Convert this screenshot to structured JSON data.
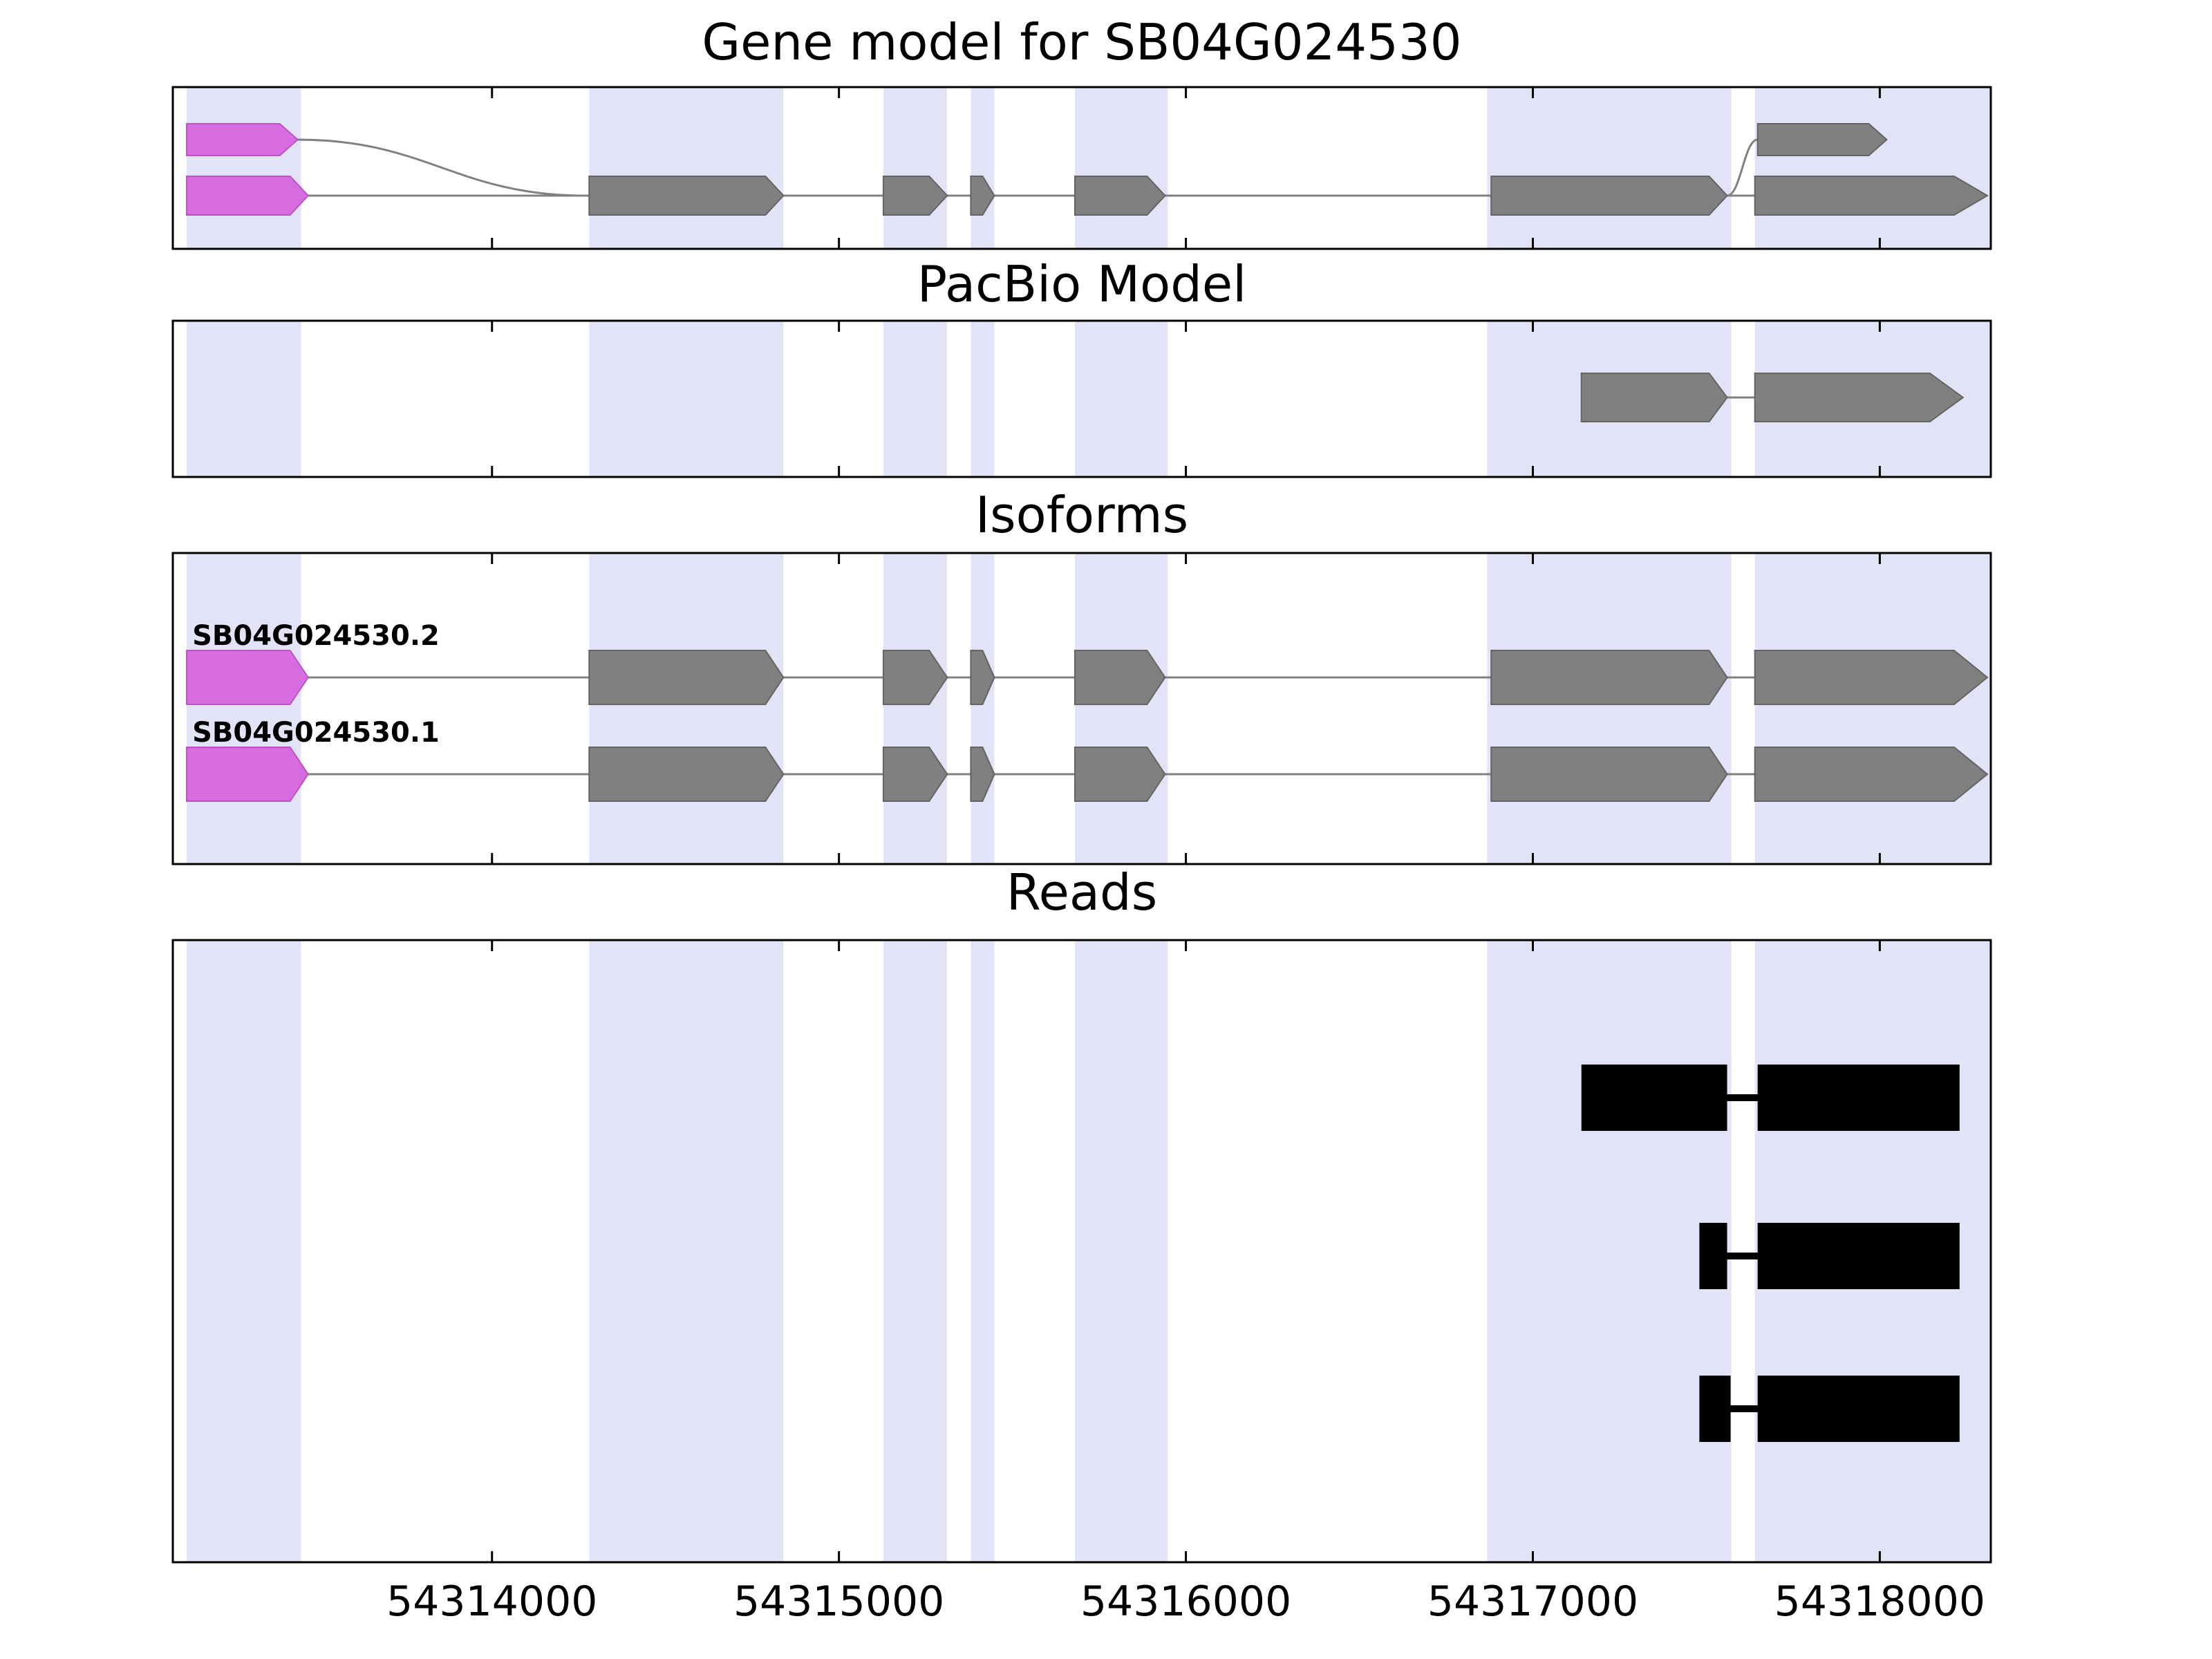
{
  "figure_title": "Gene model for SB04G024530",
  "chart_data": {
    "type": "genome-tracks",
    "x_range": [
      54313080,
      54318320
    ],
    "x_ticks": [
      54314000,
      54315000,
      54316000,
      54317000,
      54318000
    ],
    "x_tick_labels": [
      "54314000",
      "54315000",
      "54316000",
      "54317000",
      "54318000"
    ],
    "highlight_regions": [
      [
        54313120,
        54313450
      ],
      [
        54314280,
        54314840
      ],
      [
        54315128,
        54315312
      ],
      [
        54315380,
        54315448
      ],
      [
        54315680,
        54315948
      ],
      [
        54316868,
        54317572
      ],
      [
        54317640,
        54318320
      ]
    ],
    "colors": {
      "highlight": "#e3e3f8",
      "exon_gray": "#808080",
      "exon_stroke": "#636363",
      "first_exon": "#d76be0",
      "first_exon_stroke": "#b953c4",
      "intron_line": "#808080",
      "read": "#000000",
      "border": "#000000"
    },
    "tracks": [
      {
        "id": "gene_model",
        "title": "Gene model for SB04G024530",
        "rows": {
          "A": {
            "exons": [
              {
                "start": 54313120,
                "end": 54313440,
                "color": "violet"
              },
              {
                "start": 54317648,
                "end": 54318020,
                "color": "gray"
              }
            ]
          },
          "B": {
            "line": [
              54313120,
              54318310
            ],
            "exons": [
              {
                "start": 54313120,
                "end": 54313470,
                "color": "violet"
              },
              {
                "start": 54314280,
                "end": 54314840,
                "color": "gray"
              },
              {
                "start": 54315128,
                "end": 54315312,
                "color": "gray"
              },
              {
                "start": 54315380,
                "end": 54315448,
                "color": "gray"
              },
              {
                "start": 54315680,
                "end": 54315940,
                "color": "gray"
              },
              {
                "start": 54316880,
                "end": 54317560,
                "color": "gray"
              },
              {
                "start": 54317640,
                "end": 54318310,
                "color": "gray",
                "terminal": true
              }
            ]
          }
        },
        "splice_curves": [
          {
            "from": 54313440,
            "from_row": "A",
            "to": 54314270,
            "to_row": "B"
          },
          {
            "from": 54317560,
            "from_row": "B",
            "to": 54317648,
            "to_row": "A"
          }
        ]
      },
      {
        "id": "pacbio",
        "title": "PacBio Model",
        "models": [
          {
            "line": [
              54317140,
              54318240
            ],
            "exons": [
              {
                "start": 54317140,
                "end": 54317560,
                "color": "gray"
              },
              {
                "start": 54317640,
                "end": 54318240,
                "color": "gray",
                "terminal": true
              }
            ]
          }
        ]
      },
      {
        "id": "isoforms",
        "title": "Isoforms",
        "isoforms": [
          {
            "label": "SB04G024530.2",
            "line": [
              54313120,
              54318310
            ],
            "exons": [
              {
                "start": 54313120,
                "end": 54313470,
                "color": "violet"
              },
              {
                "start": 54314280,
                "end": 54314840,
                "color": "gray"
              },
              {
                "start": 54315128,
                "end": 54315312,
                "color": "gray"
              },
              {
                "start": 54315380,
                "end": 54315448,
                "color": "gray"
              },
              {
                "start": 54315680,
                "end": 54315940,
                "color": "gray"
              },
              {
                "start": 54316880,
                "end": 54317560,
                "color": "gray"
              },
              {
                "start": 54317640,
                "end": 54318310,
                "color": "gray",
                "terminal": true
              }
            ]
          },
          {
            "label": "SB04G024530.1",
            "line": [
              54313120,
              54318310
            ],
            "exons": [
              {
                "start": 54313120,
                "end": 54313470,
                "color": "violet"
              },
              {
                "start": 54314280,
                "end": 54314840,
                "color": "gray"
              },
              {
                "start": 54315128,
                "end": 54315312,
                "color": "gray"
              },
              {
                "start": 54315380,
                "end": 54315448,
                "color": "gray"
              },
              {
                "start": 54315680,
                "end": 54315940,
                "color": "gray"
              },
              {
                "start": 54316880,
                "end": 54317560,
                "color": "gray"
              },
              {
                "start": 54317640,
                "end": 54318310,
                "color": "gray",
                "terminal": true
              }
            ]
          }
        ]
      },
      {
        "id": "reads",
        "title": "Reads",
        "reads": [
          {
            "blocks": [
              [
                54317140,
                54317560
              ],
              [
                54317648,
                54318230
              ]
            ]
          },
          {
            "blocks": [
              [
                54317480,
                54317560
              ],
              [
                54317648,
                54318230
              ]
            ]
          },
          {
            "blocks": [
              [
                54317480,
                54317570
              ],
              [
                54317648,
                54318230
              ]
            ]
          }
        ]
      }
    ]
  }
}
